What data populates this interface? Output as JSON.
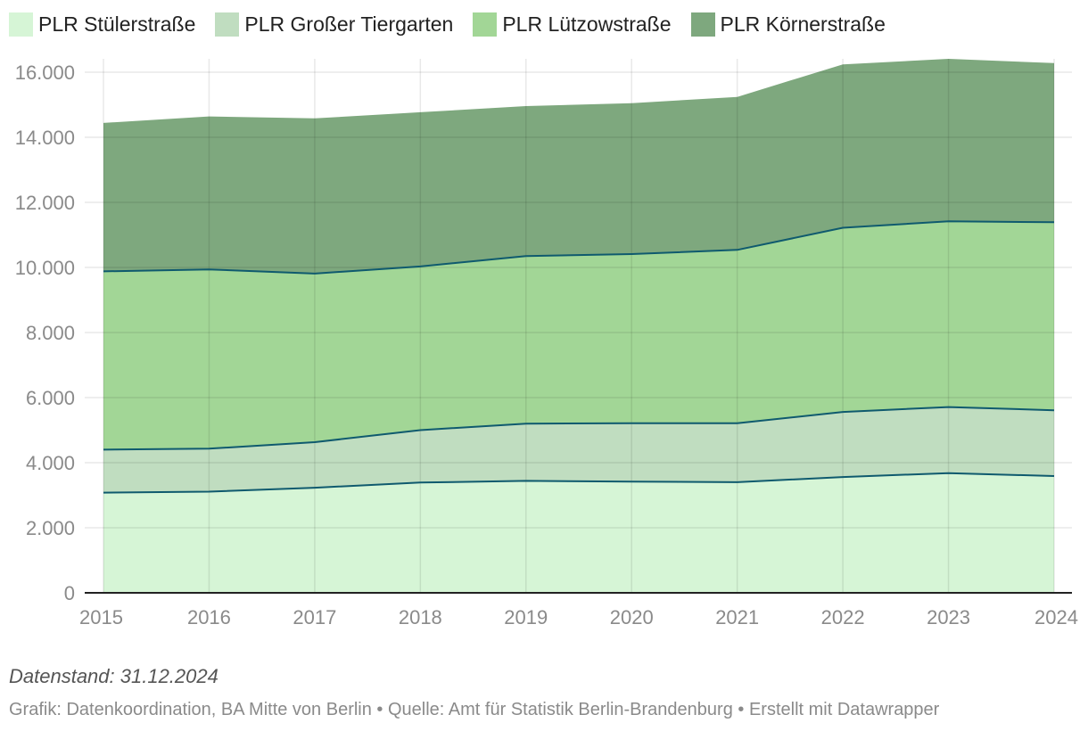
{
  "chart_data": {
    "type": "area",
    "stacked": true,
    "title": "",
    "xlabel": "",
    "ylabel": "",
    "categories": [
      "2015",
      "2016",
      "2017",
      "2018",
      "2019",
      "2020",
      "2021",
      "2022",
      "2023",
      "2024"
    ],
    "ylim": [
      0,
      16500
    ],
    "yticks": [
      0,
      2000,
      4000,
      6000,
      8000,
      10000,
      12000,
      14000,
      16000
    ],
    "ytick_labels": [
      "0",
      "2.000",
      "4.000",
      "6.000",
      "8.000",
      "10.000",
      "12.000",
      "14.000",
      "16.000"
    ],
    "grid": true,
    "legend_position": "top-left",
    "series": [
      {
        "name": "PLR Stülerstraße",
        "color": "#d6f5d6",
        "values": [
          3080,
          3110,
          3230,
          3390,
          3440,
          3420,
          3400,
          3560,
          3680,
          3590
        ]
      },
      {
        "name": "PLR Großer Tiergarten",
        "color": "#c0ddc0",
        "values": [
          1320,
          1320,
          1400,
          1610,
          1760,
          1790,
          1810,
          2000,
          2030,
          2020
        ]
      },
      {
        "name": "PLR Lützowstraße",
        "color": "#a2d696",
        "values": [
          5480,
          5510,
          5180,
          5030,
          5150,
          5200,
          5330,
          5660,
          5710,
          5780
        ]
      },
      {
        "name": "PLR Körnerstraße",
        "color": "#7ea87e",
        "values": [
          4560,
          4700,
          4770,
          4740,
          4610,
          4640,
          4700,
          5020,
          4990,
          4890
        ]
      }
    ],
    "boundary_color": "#0f5a6e"
  },
  "footer": {
    "note": "Datenstand: 31.12.2024",
    "credit": "Grafik: Datenkoordination, BA Mitte von Berlin • Quelle: Amt für Statistik Berlin-Brandenburg • Erstellt mit Datawrapper"
  }
}
